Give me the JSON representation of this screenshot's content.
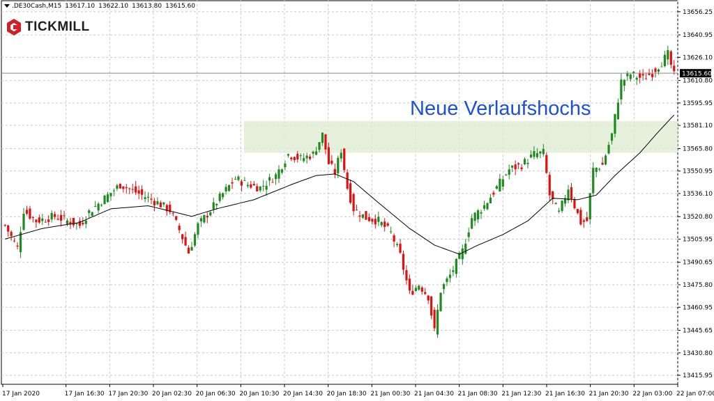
{
  "header": {
    "symbol": ".DE30Cash,M15",
    "open": "13617.10",
    "high": "13622.10",
    "low": "13613.80",
    "close": "13615.60"
  },
  "brand": {
    "name": "TICKMILL",
    "color": "#d32027"
  },
  "colors": {
    "bull": "#1f8a1f",
    "bear": "#e01010",
    "ma": "#000000",
    "zone": "#dcebd2",
    "grid": "#c8c8c8",
    "annotation": "#1d4fd8",
    "price_tag": "#000000"
  },
  "chart_data": {
    "type": "candlestick",
    "symbol": ".DE30Cash",
    "timeframe": "M15",
    "ylim": [
      13410.0,
      13664.0
    ],
    "y_ticks": [
      "13656.25",
      "13640.95",
      "13626.10",
      "13610.80",
      "13595.95",
      "13581.10",
      "13565.80",
      "13550.95",
      "13536.10",
      "13520.80",
      "13505.95",
      "13490.65",
      "13475.80",
      "13460.95",
      "13445.65",
      "13430.80",
      "13415.95"
    ],
    "x_ticks": [
      "17 Jan 2020",
      "17 Jan 16:30",
      "17 Jan 20:30",
      "20 Jan 02:30",
      "20 Jan 06:30",
      "20 Jan 10:30",
      "20 Jan 14:30",
      "20 Jan 18:30",
      "21 Jan 00:30",
      "21 Jan 04:30",
      "21 Jan 08:30",
      "21 Jan 12:30",
      "21 Jan 16:30",
      "21 Jan 20:30",
      "22 Jan 03:00",
      "22 Jan 07:00"
    ],
    "current_price": "13615.60",
    "annotation": "Neue Verlaufshochs",
    "resistance_zone": [
      13563.0,
      13584.0
    ],
    "anchors": [
      [
        0,
        13515
      ],
      [
        4,
        13500
      ],
      [
        6,
        13525
      ],
      [
        10,
        13518
      ],
      [
        16,
        13521
      ],
      [
        24,
        13515
      ],
      [
        27,
        13524
      ],
      [
        32,
        13533
      ],
      [
        37,
        13542
      ],
      [
        44,
        13535
      ],
      [
        49,
        13530
      ],
      [
        53,
        13525
      ],
      [
        56,
        13512
      ],
      [
        59,
        13497
      ],
      [
        62,
        13515
      ],
      [
        66,
        13525
      ],
      [
        70,
        13536
      ],
      [
        74,
        13546
      ],
      [
        78,
        13542
      ],
      [
        82,
        13540
      ],
      [
        87,
        13548
      ],
      [
        91,
        13562
      ],
      [
        95,
        13559
      ],
      [
        99,
        13562
      ],
      [
        102,
        13575
      ],
      [
        104,
        13556
      ],
      [
        106,
        13550
      ],
      [
        108,
        13565
      ],
      [
        110,
        13540
      ],
      [
        112,
        13526
      ],
      [
        116,
        13520
      ],
      [
        120,
        13518
      ],
      [
        124,
        13510
      ],
      [
        127,
        13495
      ],
      [
        130,
        13470
      ],
      [
        133,
        13476
      ],
      [
        136,
        13468
      ],
      [
        138,
        13445
      ],
      [
        140,
        13472
      ],
      [
        143,
        13482
      ],
      [
        147,
        13498
      ],
      [
        150,
        13520
      ],
      [
        154,
        13528
      ],
      [
        158,
        13540
      ],
      [
        162,
        13552
      ],
      [
        166,
        13555
      ],
      [
        170,
        13562
      ],
      [
        173,
        13563
      ],
      [
        175,
        13535
      ],
      [
        178,
        13523
      ],
      [
        181,
        13540
      ],
      [
        183,
        13528
      ],
      [
        185,
        13517
      ],
      [
        187,
        13518
      ],
      [
        189,
        13552
      ],
      [
        192,
        13555
      ],
      [
        195,
        13575
      ],
      [
        198,
        13610
      ],
      [
        201,
        13615
      ],
      [
        205,
        13612
      ],
      [
        208,
        13616
      ],
      [
        211,
        13623
      ],
      [
        213,
        13628
      ],
      [
        215,
        13614
      ]
    ],
    "ma_anchors": [
      [
        0,
        13506
      ],
      [
        12,
        13513
      ],
      [
        24,
        13517
      ],
      [
        34,
        13526
      ],
      [
        46,
        13528
      ],
      [
        52,
        13525
      ],
      [
        60,
        13521
      ],
      [
        68,
        13526
      ],
      [
        80,
        13532
      ],
      [
        92,
        13542
      ],
      [
        100,
        13548
      ],
      [
        106,
        13549
      ],
      [
        112,
        13544
      ],
      [
        120,
        13530
      ],
      [
        130,
        13513
      ],
      [
        138,
        13502
      ],
      [
        146,
        13496
      ],
      [
        152,
        13502
      ],
      [
        160,
        13509
      ],
      [
        168,
        13518
      ],
      [
        176,
        13533
      ],
      [
        184,
        13532
      ],
      [
        190,
        13535
      ],
      [
        196,
        13548
      ],
      [
        204,
        13563
      ],
      [
        210,
        13577
      ],
      [
        215,
        13588
      ]
    ]
  }
}
